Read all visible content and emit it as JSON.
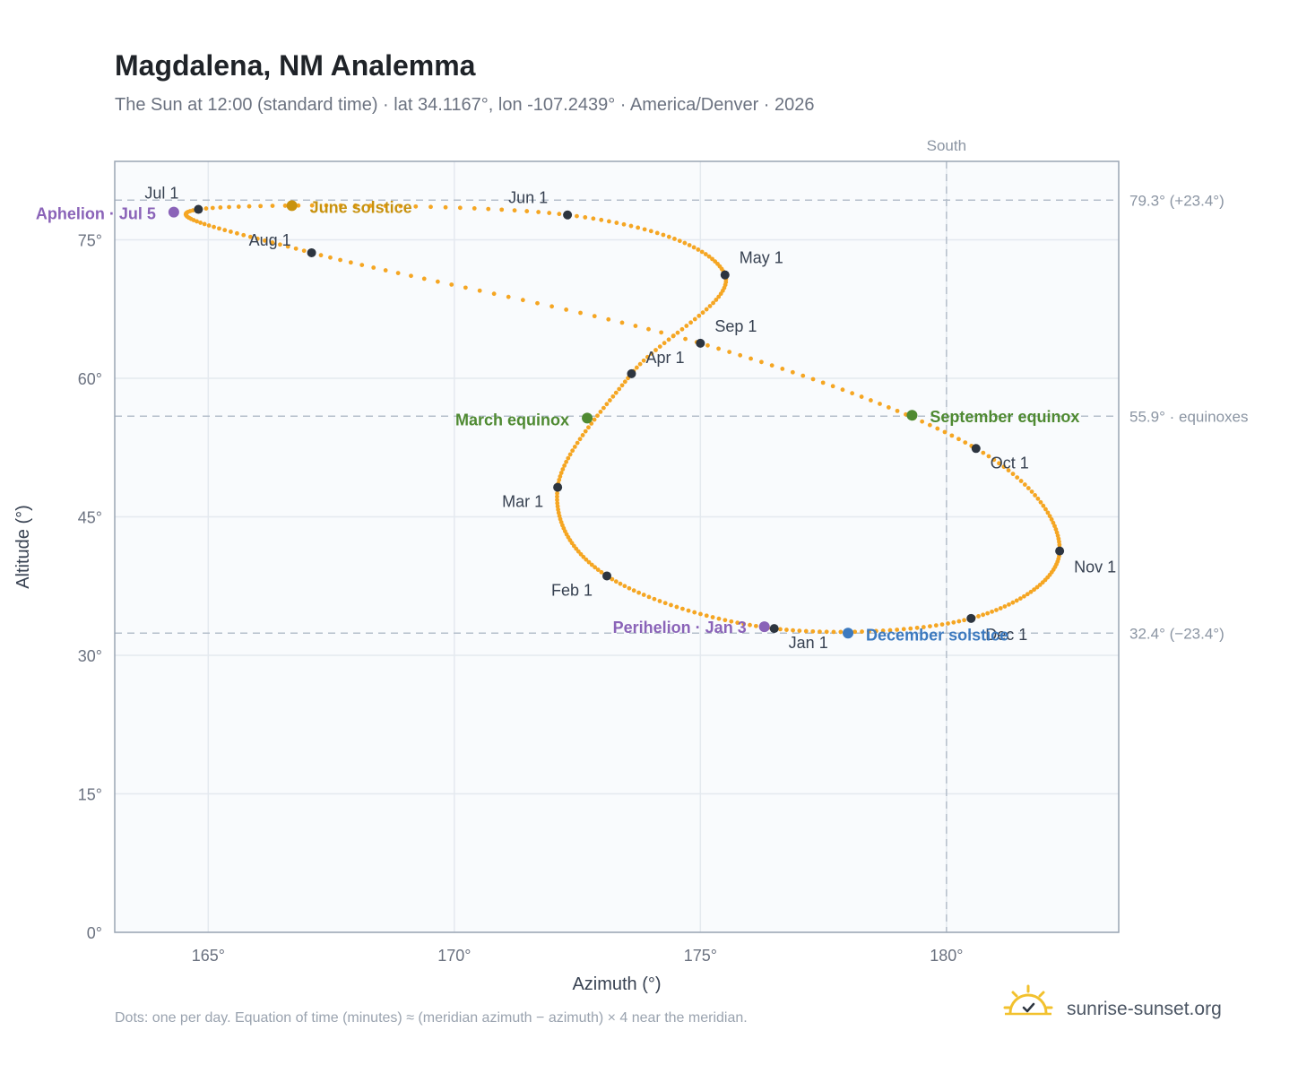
{
  "chart_data": {
    "type": "scatter",
    "title": "Magdalena, NM Analemma",
    "subtitle": "The Sun at 12:00 (standard time) · lat 34.1167°, lon -107.2439° · America/Denver · 2026",
    "xlabel": "Azimuth (°)",
    "ylabel": "Altitude (°)",
    "xlim": [
      163.1,
      183.5
    ],
    "ylim": [
      0,
      83.5
    ],
    "x_ticks": [
      165,
      170,
      175,
      180
    ],
    "x_tick_labels": [
      "165°",
      "170°",
      "175°",
      "180°"
    ],
    "y_ticks": [
      0,
      15,
      30,
      45,
      60,
      75
    ],
    "y_tick_labels": [
      "0°",
      "15°",
      "30°",
      "45°",
      "60°",
      "75°"
    ],
    "grid": true,
    "reference_lines": [
      {
        "axis": "x",
        "value": 180,
        "label": "South"
      },
      {
        "axis": "y",
        "value": 79.3,
        "label": "79.3° (+23.4°)"
      },
      {
        "axis": "y",
        "value": 55.9,
        "label": "55.9° · equinoxes"
      },
      {
        "axis": "y",
        "value": 32.4,
        "label": "32.4° (−23.4°)"
      }
    ],
    "path_color": "#f5a623",
    "month_marker_color": "#2d3540",
    "months": [
      {
        "label": "Jan 1",
        "az": 176.5,
        "alt": 32.9
      },
      {
        "label": "Feb 1",
        "az": 173.1,
        "alt": 38.6
      },
      {
        "label": "Mar 1",
        "az": 172.1,
        "alt": 48.2
      },
      {
        "label": "Apr 1",
        "az": 173.6,
        "alt": 60.5
      },
      {
        "label": "May 1",
        "az": 175.5,
        "alt": 71.2
      },
      {
        "label": "Jun 1",
        "az": 172.3,
        "alt": 77.7
      },
      {
        "label": "Jul 1",
        "az": 164.8,
        "alt": 78.3
      },
      {
        "label": "Aug 1",
        "az": 167.1,
        "alt": 73.6
      },
      {
        "label": "Sep 1",
        "az": 175.0,
        "alt": 63.8
      },
      {
        "label": "Oct 1",
        "az": 180.6,
        "alt": 52.4
      },
      {
        "label": "Nov 1",
        "az": 182.3,
        "alt": 41.3
      },
      {
        "label": "Dec 1",
        "az": 180.5,
        "alt": 34.0
      }
    ],
    "events": [
      {
        "label": "June solstice",
        "az": 166.7,
        "alt": 78.7,
        "color": "#c8920f"
      },
      {
        "label": "March equinox",
        "az": 172.7,
        "alt": 55.7,
        "color": "#4f8a32"
      },
      {
        "label": "September equinox",
        "az": 179.3,
        "alt": 56.0,
        "color": "#4f8a32"
      },
      {
        "label": "December solstice",
        "az": 178.0,
        "alt": 32.4,
        "color": "#3d7abf"
      },
      {
        "label": "Aphelion · Jul 5",
        "az": 164.3,
        "alt": 78.0,
        "color": "#8a63b8"
      },
      {
        "label": "Perihelion · Jan 3",
        "az": 176.3,
        "alt": 33.1,
        "color": "#8a63b8"
      }
    ],
    "footnote": "Dots: one per day. Equation of time (minutes) ≈ (meridian azimuth − azimuth) × 4 near the meridian."
  },
  "branding": {
    "name": "sunrise-sunset.org",
    "logo_icon": "sun-icon",
    "logo_color": "#f2c12e"
  }
}
